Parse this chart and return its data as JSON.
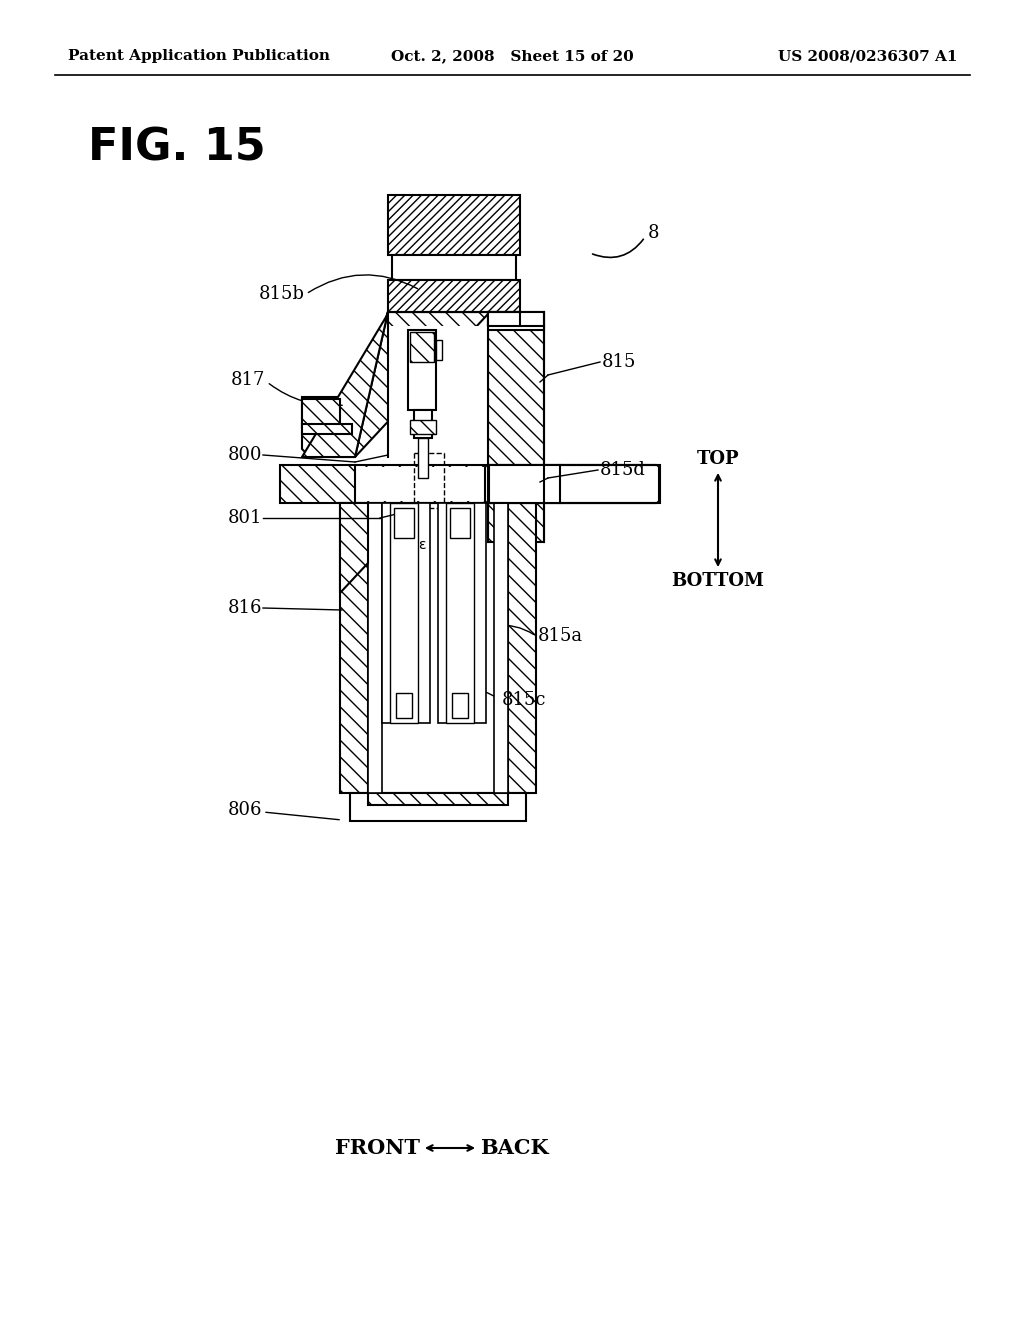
{
  "header_left": "Patent Application Publication",
  "header_center": "Oct. 2, 2008   Sheet 15 of 20",
  "header_right": "US 2008/0236307 A1",
  "title": "FIG. 15",
  "label_8": "8",
  "label_815b": "815b",
  "label_817": "817",
  "label_800": "800",
  "label_801": "801",
  "label_816": "816",
  "label_806": "806",
  "label_815": "815",
  "label_815d": "815d",
  "label_815a": "815a",
  "label_815c": "815c",
  "label_top": "TOP",
  "label_bottom": "BOTTOM",
  "footer_left": "FRONT",
  "footer_right": "BACK",
  "bg_color": "#ffffff"
}
